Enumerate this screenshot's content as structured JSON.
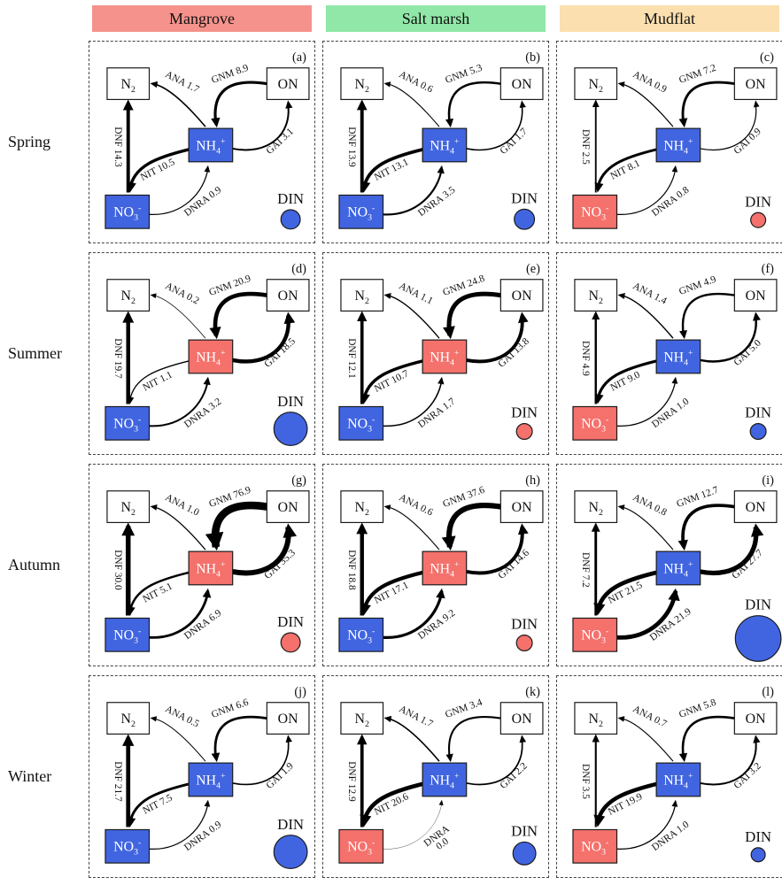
{
  "figure": {
    "columns": [
      {
        "label": "Mangrove",
        "color": "#f5928b"
      },
      {
        "label": "Salt marsh",
        "color": "#90e7a7"
      },
      {
        "label": "Mudflat",
        "color": "#fbdfae"
      }
    ],
    "rows": [
      "Spring",
      "Summer",
      "Autumn",
      "Winter"
    ],
    "palette": {
      "blue": "#4165e0",
      "red": "#f4716c",
      "box_border": "#1a1a1a",
      "arrow": "#000000"
    },
    "node_labels": {
      "n2": [
        {
          "t": "N"
        },
        {
          "t": "2",
          "shift": "sub"
        }
      ],
      "on": [
        {
          "t": "ON"
        }
      ],
      "nh4": [
        {
          "t": "NH"
        },
        {
          "t": "4",
          "shift": "sub"
        },
        {
          "t": "+",
          "shift": "sup"
        }
      ],
      "no3": [
        {
          "t": "NO"
        },
        {
          "t": "3",
          "shift": "sub"
        },
        {
          "t": "-",
          "shift": "sup"
        }
      ],
      "din": "DIN"
    },
    "flux_names": {
      "ana": "ANA",
      "gnm": "GNM",
      "dnf": "DNF",
      "nit": "NIT",
      "gai": "GAI",
      "dnra": "DNRA"
    },
    "panels": [
      {
        "letter": "(a)",
        "season": "Spring",
        "habitat": "Mangrove",
        "fluxes": {
          "ana": "1.7",
          "gnm": "8.9",
          "dnf": "14.3",
          "nit": "10.5",
          "gai": "3.1",
          "dnra": "0.9"
        },
        "nh4": "blue",
        "no3": "blue",
        "din": {
          "color": "blue",
          "radius": 11
        }
      },
      {
        "letter": "(b)",
        "season": "Spring",
        "habitat": "Salt marsh",
        "fluxes": {
          "ana": "0.6",
          "gnm": "5.3",
          "dnf": "13.9",
          "nit": "13.1",
          "gai": "1.7",
          "dnra": "3.5"
        },
        "nh4": "blue",
        "no3": "blue",
        "din": {
          "color": "blue",
          "radius": 11.5
        }
      },
      {
        "letter": "(c)",
        "season": "Spring",
        "habitat": "Mudflat",
        "fluxes": {
          "ana": "0.9",
          "gnm": "7.2",
          "dnf": "2.5",
          "nit": "8.1",
          "gai": "0.9",
          "dnra": "0.8"
        },
        "nh4": "blue",
        "no3": "red",
        "din": {
          "color": "red",
          "radius": 8.5
        }
      },
      {
        "letter": "(d)",
        "season": "Summer",
        "habitat": "Mangrove",
        "fluxes": {
          "ana": "0.2",
          "gnm": "20.9",
          "dnf": "19.7",
          "nit": "1.1",
          "gai": "18.5",
          "dnra": "3.2"
        },
        "nh4": "red",
        "no3": "blue",
        "din": {
          "color": "blue",
          "radius": 19
        }
      },
      {
        "letter": "(e)",
        "season": "Summer",
        "habitat": "Salt marsh",
        "fluxes": {
          "ana": "1.1",
          "gnm": "24.8",
          "dnf": "12.1",
          "nit": "10.7",
          "gai": "13.8",
          "dnra": "1.7"
        },
        "nh4": "red",
        "no3": "blue",
        "din": {
          "color": "red",
          "radius": 9
        }
      },
      {
        "letter": "(f)",
        "season": "Summer",
        "habitat": "Mudflat",
        "fluxes": {
          "ana": "1.4",
          "gnm": "4.9",
          "dnf": "4.9",
          "nit": "9.0",
          "gai": "5.0",
          "dnra": "1.0"
        },
        "nh4": "blue",
        "no3": "red",
        "din": {
          "color": "blue",
          "radius": 9
        }
      },
      {
        "letter": "(g)",
        "season": "Autumn",
        "habitat": "Mangrove",
        "fluxes": {
          "ana": "1.0",
          "gnm": "76.9",
          "dnf": "30.0",
          "nit": "5.1",
          "gai": "35.3",
          "dnra": "6.9"
        },
        "nh4": "red",
        "no3": "blue",
        "din": {
          "color": "red",
          "radius": 11
        }
      },
      {
        "letter": "(h)",
        "season": "Autumn",
        "habitat": "Salt marsh",
        "fluxes": {
          "ana": "0.6",
          "gnm": "37.6",
          "dnf": "18.8",
          "nit": "17.1",
          "gai": "14.6",
          "dnra": "9.2"
        },
        "nh4": "red",
        "no3": "blue",
        "din": {
          "color": "red",
          "radius": 9
        }
      },
      {
        "letter": "(i)",
        "season": "Autumn",
        "habitat": "Mudflat",
        "fluxes": {
          "ana": "0.8",
          "gnm": "12.7",
          "dnf": "7.2",
          "nit": "21.5",
          "gai": "27.7",
          "dnra": "21.9"
        },
        "nh4": "blue",
        "no3": "red",
        "din": {
          "color": "blue",
          "radius": 26
        }
      },
      {
        "letter": "(j)",
        "season": "Winter",
        "habitat": "Mangrove",
        "fluxes": {
          "ana": "0.5",
          "gnm": "6.6",
          "dnf": "21.7",
          "nit": "7.5",
          "gai": "1.9",
          "dnra": "0.9"
        },
        "nh4": "blue",
        "no3": "blue",
        "din": {
          "color": "blue",
          "radius": 19
        }
      },
      {
        "letter": "(k)",
        "season": "Winter",
        "habitat": "Salt marsh",
        "fluxes": {
          "ana": "1.7",
          "gnm": "3.4",
          "dnf": "12.9",
          "nit": "20.6",
          "gai": "2.2",
          "dnra": "0.0"
        },
        "dnra_wrap": true,
        "nh4": "blue",
        "no3": "red",
        "din": {
          "color": "blue",
          "radius": 13
        }
      },
      {
        "letter": "(l)",
        "season": "Winter",
        "habitat": "Mudflat",
        "fluxes": {
          "ana": "0.7",
          "gnm": "5.8",
          "dnf": "3.5",
          "nit": "19.9",
          "gai": "3.2",
          "dnra": "1.0"
        },
        "nh4": "blue",
        "no3": "red",
        "din": {
          "color": "blue",
          "radius": 8
        }
      }
    ]
  }
}
